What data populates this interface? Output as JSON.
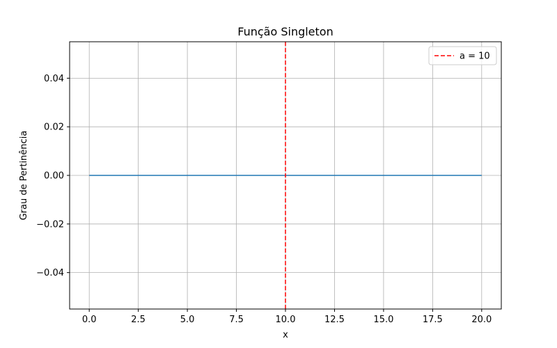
{
  "chart_data": {
    "type": "line",
    "title": "Função Singleton",
    "xlabel": "x",
    "ylabel": "Grau de Pertinência",
    "xlim": [
      -1.0,
      21.0
    ],
    "ylim": [
      -0.055,
      0.055
    ],
    "xticks": [
      0.0,
      2.5,
      5.0,
      7.5,
      10.0,
      12.5,
      15.0,
      17.5,
      20.0
    ],
    "xtick_labels": [
      "0.0",
      "2.5",
      "5.0",
      "7.5",
      "10.0",
      "12.5",
      "15.0",
      "17.5",
      "20.0"
    ],
    "yticks": [
      -0.04,
      -0.02,
      0.0,
      0.02,
      0.04
    ],
    "ytick_labels": [
      "−0.04",
      "−0.02",
      "0.00",
      "0.02",
      "0.04"
    ],
    "grid": true,
    "legend_position": "top-right",
    "series": [
      {
        "x": [
          0,
          20
        ],
        "y": [
          0,
          0
        ],
        "color": "#1f77b4",
        "style": "solid"
      }
    ],
    "vlines": [
      {
        "name": "a = 10",
        "x": 10,
        "color": "#ff0000",
        "style": "dashed"
      }
    ]
  }
}
